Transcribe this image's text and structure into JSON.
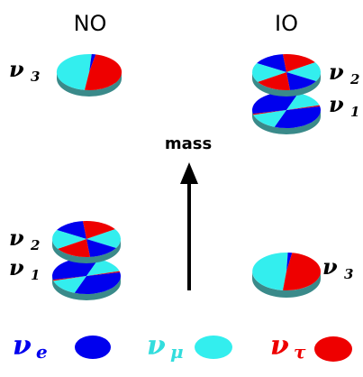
{
  "headers": {
    "normal": "NO",
    "inverted": "IO"
  },
  "mass_label": "mass",
  "symbols": {
    "nu": "ν",
    "e": "e",
    "mu": "μ",
    "tau": "τ",
    "one": "1",
    "two": "2",
    "three": "3"
  },
  "colors": {
    "nu_e": "#0000ee",
    "nu_mu": "#33eeee",
    "nu_tau": "#ee0000"
  },
  "flavor_fractions": {
    "nu_1": {
      "e": 0.68,
      "mu": 0.3,
      "tau": 0.02
    },
    "nu_2": {
      "e": 0.3,
      "mu": 0.35,
      "tau": 0.35
    },
    "nu_3": {
      "e": 0.02,
      "mu": 0.49,
      "tau": 0.49
    }
  }
}
